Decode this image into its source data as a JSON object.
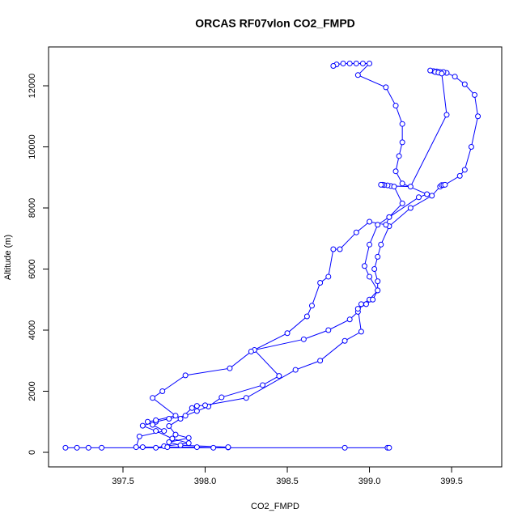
{
  "chart_data": {
    "type": "line",
    "title": "ORCAS RF07vlon CO2_FMPD",
    "x_label": "CO2_FMPD",
    "y_label": "Altitude (m)",
    "color": "#0000ff",
    "marker": "open-circle",
    "grid": false,
    "xlim": [
      397.047,
      399.805
    ],
    "ylim": [
      -477,
      13272
    ],
    "xticks": [
      {
        "value": 397.5,
        "label": "397.5"
      },
      {
        "value": 398,
        "label": "398.0"
      },
      {
        "value": 398.5,
        "label": "398.5"
      },
      {
        "value": 399,
        "label": "399.0"
      },
      {
        "value": 399.5,
        "label": "399.5"
      }
    ],
    "yticks": [
      0,
      2000,
      4000,
      6000,
      8000,
      10000,
      12000
    ],
    "x": [
      399.11,
      399.12,
      398.85,
      397.15,
      397.22,
      397.29,
      397.37,
      397.7,
      397.75,
      397.9,
      397.8,
      397.7,
      397.62,
      397.7,
      397.78,
      397.88,
      397.95,
      398.02,
      398.1,
      398.35,
      398.45,
      398.3,
      398.6,
      398.75,
      398.88,
      398.93,
      398.95,
      399.0,
      399.05,
      399.05,
      399.03,
      399.05,
      399.07,
      399.12,
      399.25,
      399.38,
      399.43,
      399.44,
      399.45,
      399.46,
      399.55,
      399.58,
      399.62,
      399.66,
      399.64,
      399.58,
      399.52,
      399.47,
      399.45,
      399.43,
      399.41,
      399.39,
      399.37,
      399.4,
      399.42,
      399.44,
      399.47,
      399.25,
      399.13,
      399.11,
      399.09,
      399.08,
      399.07,
      399.15,
      399.2,
      399.12,
      399.1,
      399.0,
      398.92,
      398.82,
      398.78,
      398.75,
      398.7,
      398.65,
      398.62,
      398.5,
      398.28,
      398.15,
      397.88,
      397.74,
      397.68,
      397.82,
      397.7,
      397.65,
      397.68,
      397.75,
      397.6,
      397.58,
      397.62,
      397.77,
      397.95,
      398.05,
      398.14,
      398.14,
      397.85,
      397.78,
      397.9,
      397.82,
      397.78,
      397.85,
      397.92,
      397.95,
      398.0,
      398.25,
      398.55,
      398.7,
      398.85,
      398.95,
      398.93,
      398.98,
      399.02,
      399.05,
      399.0,
      398.97,
      399.0,
      399.05,
      399.12,
      399.3,
      399.35,
      399.2,
      399.16,
      399.18,
      399.2,
      399.2,
      399.16,
      399.1,
      398.93,
      399.0,
      398.96,
      398.92,
      398.88,
      398.84,
      398.8,
      398.78
    ],
    "values": [
      150,
      150,
      150,
      150,
      150,
      150,
      150,
      150,
      200,
      300,
      450,
      700,
      870,
      1000,
      1100,
      1200,
      1350,
      1500,
      1800,
      2200,
      2500,
      3350,
      3700,
      4000,
      4350,
      4600,
      4850,
      5000,
      5300,
      5600,
      6000,
      6400,
      6800,
      7400,
      8000,
      8400,
      8700,
      8750,
      8750,
      8760,
      9050,
      9250,
      10000,
      11000,
      11700,
      12050,
      12300,
      12420,
      12450,
      12450,
      12470,
      12480,
      12500,
      12450,
      12430,
      12400,
      11050,
      8700,
      8720,
      8740,
      8750,
      8760,
      8760,
      8700,
      8150,
      7700,
      7450,
      7550,
      7200,
      6650,
      6650,
      5750,
      5550,
      4800,
      4450,
      3900,
      3300,
      2750,
      2520,
      2000,
      1780,
      1200,
      1050,
      1000,
      900,
      700,
      520,
      170,
      170,
      170,
      170,
      150,
      160,
      170,
      230,
      330,
      470,
      580,
      860,
      1100,
      1450,
      1520,
      1540,
      1780,
      2700,
      3000,
      3650,
      3950,
      4700,
      4850,
      5000,
      5300,
      5750,
      6100,
      6800,
      7450,
      7700,
      8350,
      8450,
      8800,
      9200,
      9700,
      10150,
      10750,
      11350,
      11950,
      12350,
      12730,
      12730,
      12730,
      12730,
      12730,
      12700,
      12650
    ]
  }
}
